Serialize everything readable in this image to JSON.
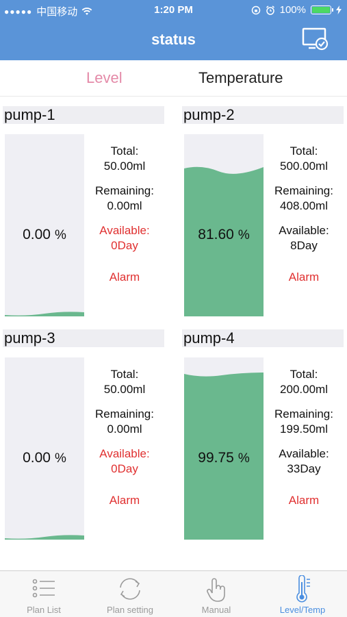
{
  "status_bar": {
    "carrier": "中国移动",
    "time": "1:20 PM",
    "battery": "100%"
  },
  "nav": {
    "title": "status"
  },
  "segments": {
    "level": "Level",
    "temperature": "Temperature",
    "active": "Level"
  },
  "labels": {
    "total": "Total:",
    "remaining": "Remaining:",
    "available": "Available:",
    "alarm": "Alarm",
    "percent": "%"
  },
  "pumps": [
    {
      "name": "pump-1",
      "level_percent": "0.00",
      "total": "50.00ml",
      "remaining": "0.00ml",
      "available": "0Day",
      "available_alert": true
    },
    {
      "name": "pump-2",
      "level_percent": "81.60",
      "total": "500.00ml",
      "remaining": "408.00ml",
      "available": "8Day",
      "available_alert": false
    },
    {
      "name": "pump-3",
      "level_percent": "0.00",
      "total": "50.00ml",
      "remaining": "0.00ml",
      "available": "0Day",
      "available_alert": true
    },
    {
      "name": "pump-4",
      "level_percent": "99.75",
      "total": "200.00ml",
      "remaining": "199.50ml",
      "available": "33Day",
      "available_alert": false
    }
  ],
  "colors": {
    "header": "#5a94d8",
    "liquid": "#6ab88e",
    "tank": "#efeff4",
    "alert": "#e03030",
    "active_tab": "#4a8ee0",
    "level_tab": "#e48aa8"
  },
  "tabbar": [
    {
      "label": "Plan List",
      "icon": "list-icon"
    },
    {
      "label": "Plan setting",
      "icon": "refresh-cycle-icon"
    },
    {
      "label": "Manual",
      "icon": "hand-touch-icon"
    },
    {
      "label": "Level/Temp",
      "icon": "thermometer-icon",
      "active": true
    }
  ]
}
